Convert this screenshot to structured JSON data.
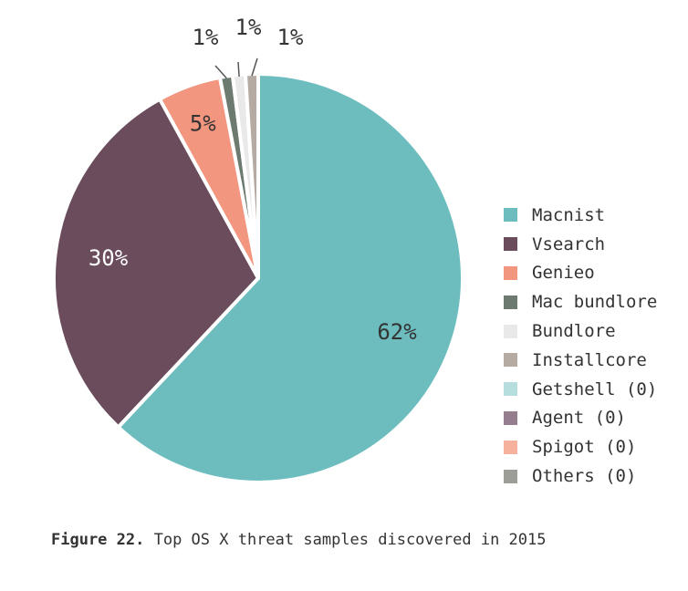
{
  "chart_data": {
    "type": "pie",
    "title": "",
    "categories": [
      "Macnist",
      "Vsearch",
      "Genieo",
      "Mac bundlore",
      "Bundlore",
      "Installcore",
      "Getshell (0)",
      "Agent (0)",
      "Spigot (0)",
      "Others (0)"
    ],
    "values": [
      62,
      30,
      5,
      1,
      1,
      1,
      0,
      0,
      0,
      0
    ],
    "value_labels": [
      "62%",
      "30%",
      "5%",
      "",
      "1%",
      "",
      "",
      "",
      "",
      ""
    ],
    "callout_labels": [
      "1%",
      "1%",
      "1%"
    ],
    "colors": [
      "#6dbdbf",
      "#6a4c5c",
      "#f39680",
      "#6c7a70",
      "#e9e9e9",
      "#b5aba3",
      "#b7dedf",
      "#957e8d",
      "#f6b29d",
      "#9e9e98"
    ],
    "label_colors": [
      "#333333",
      "#ffffff",
      "#333333"
    ],
    "legend_position": "right"
  },
  "legend": {
    "items": [
      {
        "label": "Macnist",
        "color": "#6dbdbf"
      },
      {
        "label": "Vsearch",
        "color": "#6a4c5c"
      },
      {
        "label": "Genieo",
        "color": "#f39680"
      },
      {
        "label": "Mac bundlore",
        "color": "#6c7a70"
      },
      {
        "label": "Bundlore",
        "color": "#e9e9e9"
      },
      {
        "label": "Installcore",
        "color": "#b5aba3"
      },
      {
        "label": "Getshell (0)",
        "color": "#b7dedf"
      },
      {
        "label": "Agent (0)",
        "color": "#957e8d"
      },
      {
        "label": "Spigot (0)",
        "color": "#f6b29d"
      },
      {
        "label": "Others (0)",
        "color": "#9e9e98"
      }
    ]
  },
  "caption": {
    "number": "Figure 22.",
    "text": "Top OS X threat samples discovered in 2015"
  }
}
